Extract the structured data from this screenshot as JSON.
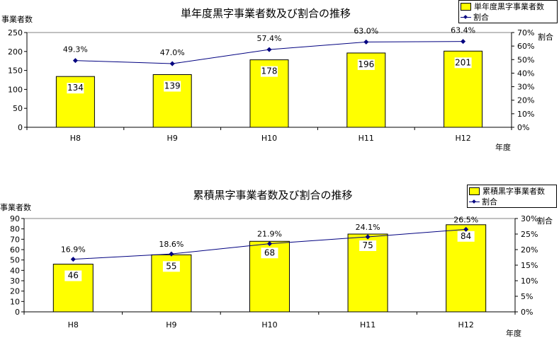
{
  "chart_data": [
    {
      "type": "bar",
      "title": "単年度黒字事業者数及び割合の推移",
      "ylabel": "事業者数",
      "y2label": "割合",
      "xlabel": "年度",
      "categories": [
        "H8",
        "H9",
        "H10",
        "H11",
        "H12"
      ],
      "ylim": [
        0,
        250
      ],
      "yticks": [
        "0",
        "50",
        "100",
        "150",
        "200",
        "250"
      ],
      "y2lim": [
        0,
        70
      ],
      "y2ticks": [
        "0%",
        "10%",
        "20%",
        "30%",
        "40%",
        "50%",
        "60%",
        "70%"
      ],
      "series": [
        {
          "name": "単年度黒字事業者数",
          "kind": "bar",
          "axis": "left",
          "values": [
            134,
            139,
            178,
            196,
            201
          ],
          "labels": [
            "134",
            "139",
            "178",
            "196",
            "201"
          ],
          "color": "#ffff00"
        },
        {
          "name": "割合",
          "kind": "line",
          "axis": "right",
          "values": [
            49.3,
            47.0,
            57.4,
            63.0,
            63.4
          ],
          "labels": [
            "49.3%",
            "47.0%",
            "57.4%",
            "63.0%",
            "63.4%"
          ],
          "color": "#000080"
        }
      ],
      "legend_position": "top-right",
      "grid": false
    },
    {
      "type": "bar",
      "title": "累積黒字事業者数及び割合の推移",
      "ylabel": "事業者数",
      "y2label": "割合",
      "xlabel": "年度",
      "categories": [
        "H8",
        "H9",
        "H10",
        "H11",
        "H12"
      ],
      "ylim": [
        0,
        90
      ],
      "yticks": [
        "0",
        "10",
        "20",
        "30",
        "40",
        "50",
        "60",
        "70",
        "80",
        "90"
      ],
      "y2lim": [
        0,
        30
      ],
      "y2ticks": [
        "0%",
        "5%",
        "10%",
        "15%",
        "20%",
        "25%",
        "30%"
      ],
      "series": [
        {
          "name": "累積黒字事業者数",
          "kind": "bar",
          "axis": "left",
          "values": [
            46,
            55,
            68,
            75,
            84
          ],
          "labels": [
            "46",
            "55",
            "68",
            "75",
            "84"
          ],
          "color": "#ffff00"
        },
        {
          "name": "割合",
          "kind": "line",
          "axis": "right",
          "values": [
            16.9,
            18.6,
            21.9,
            24.1,
            26.5
          ],
          "labels": [
            "16.9%",
            "18.6%",
            "21.9%",
            "24.1%",
            "26.5%"
          ],
          "color": "#000080"
        }
      ],
      "legend_position": "top-right",
      "grid": false
    }
  ]
}
